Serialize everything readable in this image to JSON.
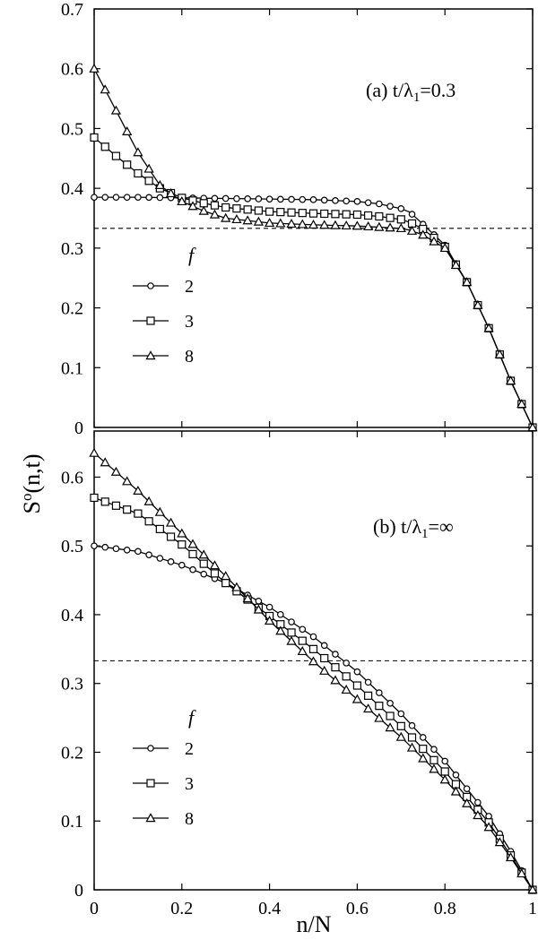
{
  "chart_data": [
    {
      "type": "line",
      "panel": "a",
      "annotation": "(a) t/λ",
      "annotation_sub": "1",
      "annotation_rest": "=0.3",
      "ylabel": "S",
      "ylabel_sup": "o",
      "ylabel_rest": "(n,t)",
      "xlim": [
        0,
        1
      ],
      "ylim": [
        0,
        0.7
      ],
      "yticks": [
        "0",
        "0.1",
        "0.2",
        "0.3",
        "0.4",
        "0.5",
        "0.6",
        "0.7"
      ],
      "reference_line": 0.333,
      "legend": {
        "title": "f",
        "entries": [
          "2",
          "3",
          "8"
        ]
      },
      "series": [
        {
          "name": "2",
          "marker": "circle",
          "x": [
            0,
            0.1,
            0.2,
            0.3,
            0.4,
            0.5,
            0.6,
            0.65,
            0.7,
            0.72,
            0.75,
            0.8,
            0.85,
            0.9,
            0.95,
            1.0
          ],
          "y": [
            0.385,
            0.385,
            0.384,
            0.383,
            0.382,
            0.381,
            0.378,
            0.374,
            0.366,
            0.36,
            0.34,
            0.305,
            0.243,
            0.166,
            0.078,
            0.0
          ]
        },
        {
          "name": "3",
          "marker": "square",
          "x": [
            0,
            0.05,
            0.1,
            0.15,
            0.2,
            0.25,
            0.3,
            0.4,
            0.5,
            0.6,
            0.65,
            0.7,
            0.72,
            0.75,
            0.8,
            0.85,
            0.9,
            0.95,
            1.0
          ],
          "y": [
            0.485,
            0.454,
            0.425,
            0.4,
            0.384,
            0.375,
            0.368,
            0.361,
            0.358,
            0.356,
            0.353,
            0.348,
            0.343,
            0.332,
            0.302,
            0.243,
            0.166,
            0.078,
            0.0
          ]
        },
        {
          "name": "8",
          "marker": "triangle",
          "x": [
            0,
            0.05,
            0.1,
            0.15,
            0.2,
            0.25,
            0.3,
            0.4,
            0.5,
            0.6,
            0.65,
            0.7,
            0.72,
            0.75,
            0.8,
            0.85,
            0.9,
            0.95,
            1.0
          ],
          "y": [
            0.6,
            0.53,
            0.46,
            0.405,
            0.378,
            0.362,
            0.35,
            0.342,
            0.339,
            0.337,
            0.335,
            0.333,
            0.33,
            0.322,
            0.3,
            0.243,
            0.166,
            0.078,
            0.0
          ]
        }
      ]
    },
    {
      "type": "line",
      "panel": "b",
      "annotation": "(b) t/λ",
      "annotation_sub": "1",
      "annotation_rest": "=∞",
      "ylabel": "",
      "xlabel": "n/N",
      "xlim": [
        0,
        1
      ],
      "ylim": [
        0,
        0.667
      ],
      "yticks": [
        "0",
        "0.1",
        "0.2",
        "0.3",
        "0.4",
        "0.5",
        "0.6"
      ],
      "xticks": [
        "0",
        "0.2",
        "0.4",
        "0.6",
        "0.8",
        "1"
      ],
      "reference_line": 0.333,
      "legend": {
        "title": "f",
        "entries": [
          "2",
          "3",
          "8"
        ]
      },
      "series": [
        {
          "name": "2",
          "marker": "circle",
          "x": [
            0,
            0.1,
            0.2,
            0.3,
            0.4,
            0.5,
            0.6,
            0.7,
            0.8,
            0.9,
            0.95,
            1.0
          ],
          "y": [
            0.5,
            0.492,
            0.472,
            0.446,
            0.411,
            0.368,
            0.317,
            0.256,
            0.187,
            0.107,
            0.056,
            0.0
          ]
        },
        {
          "name": "3",
          "marker": "square",
          "x": [
            0,
            0.1,
            0.2,
            0.3,
            0.4,
            0.5,
            0.6,
            0.7,
            0.8,
            0.9,
            0.95,
            1.0
          ],
          "y": [
            0.57,
            0.547,
            0.502,
            0.446,
            0.398,
            0.35,
            0.297,
            0.238,
            0.172,
            0.098,
            0.05,
            0.0
          ]
        },
        {
          "name": "8",
          "marker": "triangle",
          "x": [
            0,
            0.1,
            0.2,
            0.3,
            0.4,
            0.5,
            0.6,
            0.7,
            0.8,
            0.9,
            0.95,
            1.0
          ],
          "y": [
            0.635,
            0.58,
            0.518,
            0.456,
            0.391,
            0.332,
            0.277,
            0.222,
            0.16,
            0.091,
            0.047,
            0.0
          ]
        }
      ]
    }
  ]
}
